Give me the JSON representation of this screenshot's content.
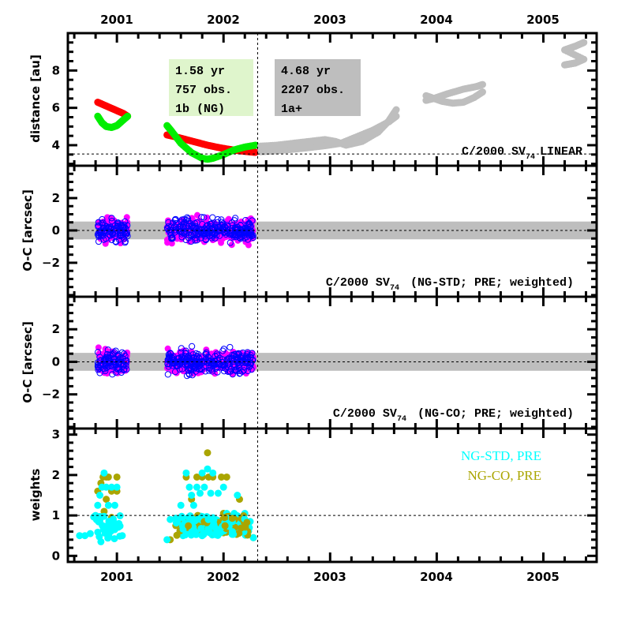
{
  "chart_data": [
    {
      "type": "scatter",
      "panel": "distance",
      "title": "C/2000 SV74 LINEAR",
      "title_main": "C/2000 SV",
      "title_sub": "74",
      "title_tail": "LINEAR",
      "xlabel": "",
      "ylabel": "distance [au]",
      "xlim": [
        2000.54,
        2005.5
      ],
      "ylim": [
        2.9,
        10.0
      ],
      "yticks": [
        4,
        6,
        8
      ],
      "xticks_top": [
        "2001",
        "2002",
        "2003",
        "2004",
        "2005"
      ],
      "xtick_values": [
        2001,
        2002,
        2003,
        2004,
        2005
      ],
      "reference_line_y": 3.53,
      "boundary_year": 2002.32,
      "boxes": [
        {
          "lines": [
            "1.58 yr",
            "757 obs.",
            "1b (NG)"
          ],
          "color": "#dff5cc"
        },
        {
          "lines": [
            "4.68 yr",
            "2207 obs.",
            "1a+"
          ],
          "color": "#bebebe"
        }
      ],
      "series": [
        {
          "name": "heliocentric distance (data arc)",
          "color": "#ff0000",
          "x": [
            2000.82,
            2000.88,
            2000.94,
            2001.0,
            2001.06,
            2001.1,
            2001.47,
            2001.55,
            2001.65,
            2001.75,
            2001.85,
            2001.95,
            2002.05,
            2002.15,
            2002.25,
            2002.3
          ],
          "y": [
            6.3,
            6.15,
            6.0,
            5.85,
            5.7,
            5.55,
            4.55,
            4.45,
            4.3,
            4.15,
            4.0,
            3.88,
            3.78,
            3.7,
            3.64,
            3.62
          ]
        },
        {
          "name": "geocentric distance (data arc)",
          "color": "#00ee00",
          "x": [
            2000.82,
            2000.86,
            2000.9,
            2000.95,
            2001.0,
            2001.05,
            2001.1,
            2001.47,
            2001.52,
            2001.6,
            2001.7,
            2001.8,
            2001.85,
            2001.9,
            2002.0,
            2002.1,
            2002.2,
            2002.3
          ],
          "y": [
            5.55,
            5.2,
            5.0,
            4.95,
            5.05,
            5.3,
            5.55,
            5.05,
            4.7,
            4.1,
            3.6,
            3.3,
            3.25,
            3.3,
            3.5,
            3.75,
            3.9,
            4.0
          ],
          "fit": ""
        },
        {
          "name": "heliocentric distance (later arc)",
          "color": "#bebebe",
          "x": [
            2002.35,
            2002.5,
            2002.65,
            2002.8,
            2002.95,
            2003.1,
            2003.25,
            2003.4,
            2003.55,
            2003.62
          ],
          "y": [
            3.65,
            3.7,
            3.78,
            3.87,
            3.97,
            4.1,
            4.45,
            4.8,
            5.25,
            5.55
          ]
        },
        {
          "name": "geocentric distance (later arc)",
          "color": "#bebebe",
          "x": [
            2002.35,
            2002.5,
            2002.65,
            2002.8,
            2002.95,
            2003.05,
            2003.15,
            2003.3,
            2003.45,
            2003.55,
            2003.62
          ],
          "y": [
            3.95,
            4.0,
            4.1,
            4.2,
            4.3,
            4.2,
            4.0,
            4.2,
            4.7,
            5.3,
            5.9
          ]
        },
        {
          "name": "later arc 2004",
          "color": "#bebebe",
          "x": [
            2003.9,
            2003.95,
            2004.05,
            2004.15,
            2004.25,
            2004.35,
            2004.43,
            2003.9,
            2003.97,
            2004.1,
            2004.25,
            2004.38,
            2004.43
          ],
          "y": [
            6.65,
            6.55,
            6.35,
            6.25,
            6.3,
            6.55,
            6.85,
            6.4,
            6.5,
            6.75,
            7.0,
            7.15,
            7.25
          ]
        },
        {
          "name": "later arc 2005",
          "color": "#bebebe",
          "x": [
            2005.2,
            2005.25,
            2005.3,
            2005.38,
            2005.2,
            2005.25,
            2005.3,
            2005.38
          ],
          "y": [
            8.3,
            8.35,
            8.4,
            8.6,
            9.1,
            9.2,
            9.3,
            9.5
          ]
        }
      ]
    },
    {
      "type": "scatter",
      "panel": "residuals-ng-std",
      "title_main": "C/2000 SV",
      "title_sub": "74",
      "title_tail": "(NG-STD; PRE; weighted)",
      "ylabel": "O-C [arcsec]",
      "xlim": [
        2000.54,
        2005.5
      ],
      "ylim": [
        -4.1,
        4.0
      ],
      "yticks": [
        -2,
        0,
        2
      ],
      "band": [
        -0.55,
        0.55
      ],
      "clusters": [
        {
          "name": "RA residuals",
          "color": "#ff00ff",
          "filled": true,
          "x_range": [
            2000.82,
            2001.1
          ],
          "y_sigma": 0.6
        },
        {
          "name": "Dec residuals",
          "color": "#0000ff",
          "filled": false,
          "x_range": [
            2000.82,
            2001.1
          ],
          "y_sigma": 0.55
        },
        {
          "name": "RA residuals",
          "color": "#ff00ff",
          "filled": true,
          "x_range": [
            2001.47,
            2002.28
          ],
          "y_sigma": 0.6
        },
        {
          "name": "Dec residuals",
          "color": "#0000ff",
          "filled": false,
          "x_range": [
            2001.47,
            2002.28
          ],
          "y_sigma": 0.55
        }
      ]
    },
    {
      "type": "scatter",
      "panel": "residuals-ng-co",
      "title_main": "C/2000 SV",
      "title_sub": "74",
      "title_tail": "(NG-CO; PRE; weighted)",
      "ylabel": "O-C [arcsec]",
      "xlim": [
        2000.54,
        2005.5
      ],
      "ylim": [
        -4.1,
        4.0
      ],
      "yticks": [
        -2,
        0,
        2
      ],
      "band": [
        -0.55,
        0.55
      ],
      "clusters": [
        {
          "name": "RA residuals",
          "color": "#ff00ff",
          "filled": true,
          "x_range": [
            2000.82,
            2001.1
          ],
          "y_sigma": 0.6
        },
        {
          "name": "Dec residuals",
          "color": "#0000ff",
          "filled": false,
          "x_range": [
            2000.82,
            2001.1
          ],
          "y_sigma": 0.55
        },
        {
          "name": "RA residuals",
          "color": "#ff00ff",
          "filled": true,
          "x_range": [
            2001.47,
            2002.28
          ],
          "y_sigma": 0.6
        },
        {
          "name": "Dec residuals",
          "color": "#0000ff",
          "filled": false,
          "x_range": [
            2001.47,
            2002.28
          ],
          "y_sigma": 0.55
        }
      ]
    },
    {
      "type": "scatter",
      "panel": "weights",
      "ylabel": "weights",
      "xlabel": "",
      "xlim": [
        2000.54,
        2005.5
      ],
      "ylim": [
        -0.15,
        3.15
      ],
      "yticks": [
        0,
        1,
        2,
        3
      ],
      "xticks_bottom": [
        "2001",
        "2002",
        "2003",
        "2004",
        "2005"
      ],
      "reference_line_y": 1.0,
      "legend": [
        {
          "label": "NG-STD, PRE",
          "color": "#00ffff"
        },
        {
          "label": "NG-CO, PRE",
          "color": "#aaa500"
        }
      ],
      "legend_position": "top-right",
      "series": [
        {
          "name": "NG-CO, PRE",
          "color": "#aaa500",
          "x": [
            2000.82,
            2000.85,
            2000.87,
            2000.9,
            2000.92,
            2000.95,
            2001.0,
            2001.0,
            2000.88,
            2000.9,
            2000.95,
            2001.5,
            2001.65,
            2001.7,
            2001.75,
            2001.8,
            2001.85,
            2001.86,
            2001.9,
            2001.98,
            2002.03,
            2002.15,
            2002.22,
            2002.28,
            2001.6,
            2001.7,
            2001.8,
            2001.9,
            2002.0,
            2002.1
          ],
          "y": [
            1.6,
            1.8,
            1.95,
            1.95,
            1.95,
            1.6,
            1.95,
            1.6,
            1.1,
            1.4,
            0.95,
            0.4,
            1.95,
            1.4,
            1.95,
            1.95,
            2.55,
            1.95,
            1.95,
            1.95,
            1.95,
            1.4,
            0.65,
            0.45,
            0.9,
            0.95,
            0.85,
            0.9,
            1.05,
            0.85
          ]
        },
        {
          "name": "NG-STD, PRE",
          "color": "#00ffff",
          "x": [
            2000.65,
            2000.7,
            2000.75,
            2000.8,
            2000.82,
            2000.84,
            2000.86,
            2000.88,
            2000.9,
            2000.92,
            2000.95,
            2000.98,
            2001.0,
            2001.05,
            2000.85,
            2000.9,
            2000.98,
            2001.47,
            2001.5,
            2001.6,
            2001.62,
            2001.65,
            2001.68,
            2001.7,
            2001.72,
            2001.75,
            2001.78,
            2001.8,
            2001.82,
            2001.85,
            2001.88,
            2001.9,
            2001.95,
            2002.0,
            2002.03,
            2002.05,
            2002.1,
            2002.13,
            2002.2,
            2002.25,
            2002.28,
            2001.62,
            2001.8,
            2001.95
          ],
          "y": [
            0.5,
            0.5,
            0.55,
            1.0,
            1.25,
            1.5,
            1.7,
            2.05,
            1.7,
            1.25,
            1.7,
            1.25,
            1.7,
            0.5,
            0.35,
            0.6,
            0.65,
            0.4,
            0.9,
            1.25,
            0.75,
            2.05,
            1.7,
            1.5,
            1.25,
            1.7,
            1.55,
            2.05,
            1.7,
            2.15,
            1.55,
            2.05,
            1.55,
            1.7,
            1.05,
            0.6,
            1.05,
            1.5,
            1.05,
            0.85,
            0.45,
            0.5,
            0.5,
            0.55
          ]
        }
      ]
    }
  ]
}
